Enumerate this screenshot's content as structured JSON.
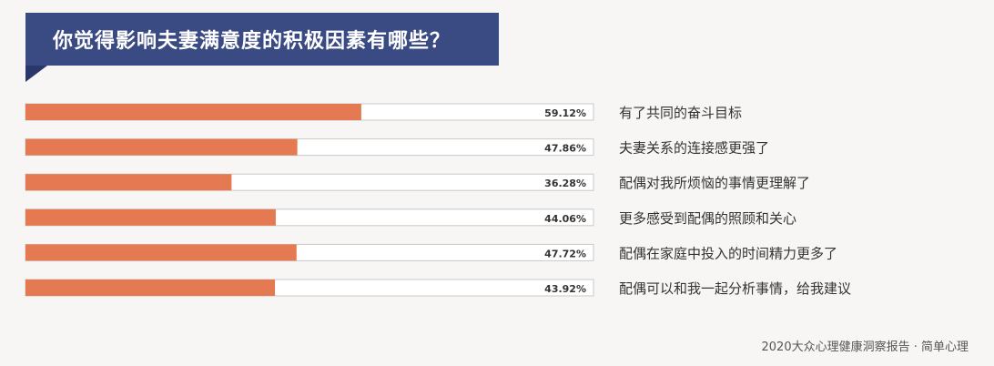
{
  "title": "你觉得影响夫妻满意度的积极因素有哪些？",
  "footer": "2020大众心理健康洞察报告 · 简单心理",
  "colors": {
    "bar": "#e57a52",
    "track": "#ffffff",
    "track_border": "#c9c9c9",
    "banner": "#3a4a82"
  },
  "chart_data": {
    "type": "bar",
    "orientation": "horizontal",
    "categories": [
      "有了共同的奋斗目标",
      "夫妻关系的连接感更强了",
      "配偶对我所烦恼的事情更理解了",
      "更多感受到配偶的照顾和关心",
      "配偶在家庭中投入的时间精力更多了",
      "配偶可以和我一起分析事情，给我建议"
    ],
    "values": [
      59.12,
      47.86,
      36.28,
      44.06,
      47.72,
      43.92
    ],
    "value_labels": [
      "59.12%",
      "47.86%",
      "36.28%",
      "44.06%",
      "47.72%",
      "43.92%"
    ],
    "xlim": [
      0,
      100
    ],
    "grid": false
  }
}
